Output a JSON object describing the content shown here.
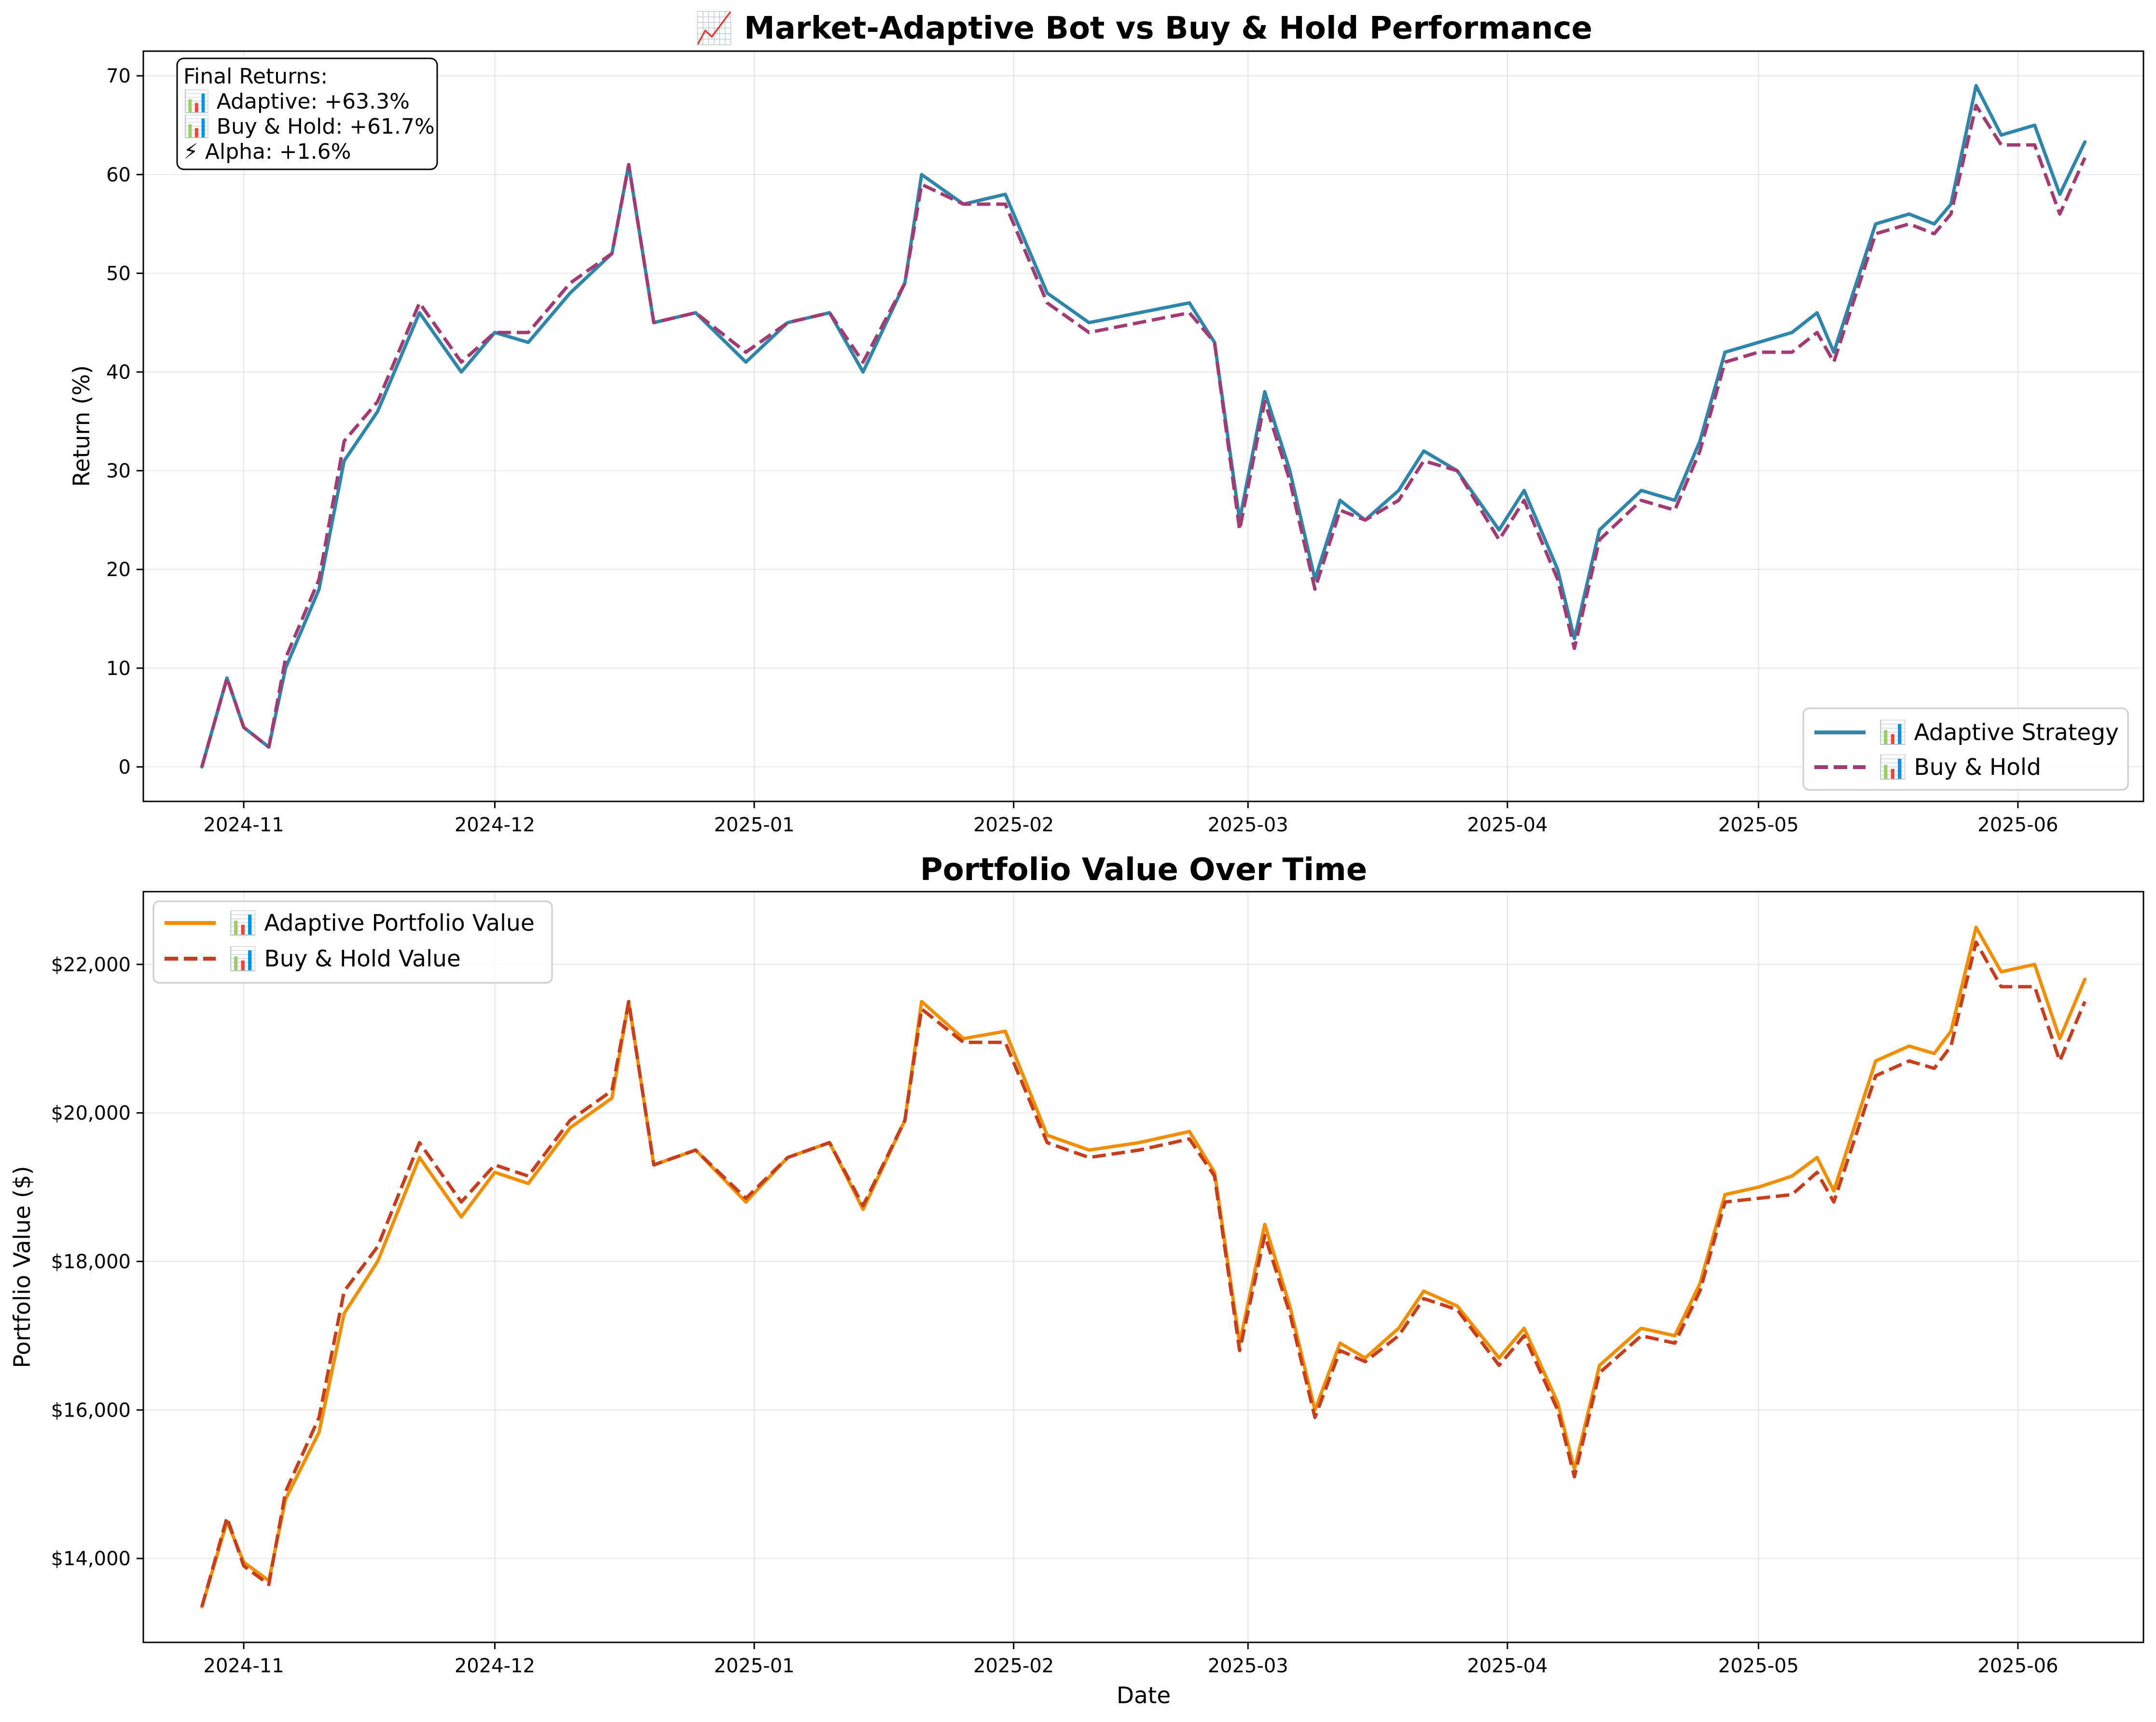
{
  "chart_data": [
    {
      "type": "line",
      "title": "📈 Market-Adaptive Bot vs Buy & Hold Performance",
      "xlabel": "",
      "ylabel": "Return (%)",
      "x_range": [
        "2024-10-20",
        "2025-06-16"
      ],
      "ylim": [
        -3.5,
        72.5
      ],
      "yticks": [
        0,
        10,
        20,
        30,
        40,
        50,
        60,
        70
      ],
      "xticks": [
        "2024-11",
        "2024-12",
        "2025-01",
        "2025-02",
        "2025-03",
        "2025-04",
        "2025-05",
        "2025-06"
      ],
      "grid": true,
      "legend_position": "lower right",
      "annotation": [
        "Final Returns:",
        "📊 Adaptive: +63.3%",
        "📊 Buy & Hold: +61.7%",
        "⚡ Alpha: +1.6%"
      ],
      "series": [
        {
          "name": "📊 Adaptive Strategy",
          "color": "#2E86AB",
          "linestyle": "solid",
          "x": [
            "2024-10-27",
            "2024-10-30",
            "2024-11-01",
            "2024-11-04",
            "2024-11-06",
            "2024-11-10",
            "2024-11-13",
            "2024-11-17",
            "2024-11-22",
            "2024-11-27",
            "2024-12-01",
            "2024-12-05",
            "2024-12-10",
            "2024-12-15",
            "2024-12-17",
            "2024-12-20",
            "2024-12-25",
            "2024-12-31",
            "2025-01-05",
            "2025-01-10",
            "2025-01-14",
            "2025-01-19",
            "2025-01-21",
            "2025-01-26",
            "2025-01-31",
            "2025-02-05",
            "2025-02-10",
            "2025-02-16",
            "2025-02-22",
            "2025-02-25",
            "2025-02-28",
            "2025-03-03",
            "2025-03-06",
            "2025-03-09",
            "2025-03-12",
            "2025-03-15",
            "2025-03-19",
            "2025-03-22",
            "2025-03-26",
            "2025-03-31",
            "2025-04-03",
            "2025-04-07",
            "2025-04-09",
            "2025-04-12",
            "2025-04-17",
            "2025-04-21",
            "2025-04-24",
            "2025-04-27",
            "2025-05-01",
            "2025-05-05",
            "2025-05-08",
            "2025-05-10",
            "2025-05-15",
            "2025-05-19",
            "2025-05-22",
            "2025-05-24",
            "2025-05-27",
            "2025-05-30",
            "2025-06-03",
            "2025-06-06",
            "2025-06-09"
          ],
          "values": [
            0,
            9,
            4,
            2,
            10,
            18,
            31,
            36,
            46,
            40,
            44,
            43,
            48,
            52,
            61,
            45,
            46,
            41,
            45,
            46,
            40,
            49,
            60,
            57,
            58,
            48,
            45,
            46,
            47,
            43,
            25,
            38,
            30,
            19,
            27,
            25,
            28,
            32,
            30,
            24,
            28,
            20,
            13,
            24,
            28,
            27,
            33,
            42,
            43,
            44,
            46,
            42,
            55,
            56,
            55,
            57,
            69,
            64,
            65,
            58,
            63.3
          ]
        },
        {
          "name": "📊 Buy & Hold",
          "color": "#A23B72",
          "linestyle": "dashed",
          "x": [
            "2024-10-27",
            "2024-10-30",
            "2024-11-01",
            "2024-11-04",
            "2024-11-06",
            "2024-11-10",
            "2024-11-13",
            "2024-11-17",
            "2024-11-22",
            "2024-11-27",
            "2024-12-01",
            "2024-12-05",
            "2024-12-10",
            "2024-12-15",
            "2024-12-17",
            "2024-12-20",
            "2024-12-25",
            "2024-12-31",
            "2025-01-05",
            "2025-01-10",
            "2025-01-14",
            "2025-01-19",
            "2025-01-21",
            "2025-01-26",
            "2025-01-31",
            "2025-02-05",
            "2025-02-10",
            "2025-02-16",
            "2025-02-22",
            "2025-02-25",
            "2025-02-28",
            "2025-03-03",
            "2025-03-06",
            "2025-03-09",
            "2025-03-12",
            "2025-03-15",
            "2025-03-19",
            "2025-03-22",
            "2025-03-26",
            "2025-03-31",
            "2025-04-03",
            "2025-04-07",
            "2025-04-09",
            "2025-04-12",
            "2025-04-17",
            "2025-04-21",
            "2025-04-24",
            "2025-04-27",
            "2025-05-01",
            "2025-05-05",
            "2025-05-08",
            "2025-05-10",
            "2025-05-15",
            "2025-05-19",
            "2025-05-22",
            "2025-05-24",
            "2025-05-27",
            "2025-05-30",
            "2025-06-03",
            "2025-06-06",
            "2025-06-09"
          ],
          "values": [
            0,
            9,
            4,
            2,
            11,
            19,
            33,
            37,
            47,
            41,
            44,
            44,
            49,
            52,
            61,
            45,
            46,
            42,
            45,
            46,
            41,
            49,
            59,
            57,
            57,
            47,
            44,
            45,
            46,
            43,
            24,
            37,
            29,
            18,
            26,
            25,
            27,
            31,
            30,
            23,
            27,
            19,
            12,
            23,
            27,
            26,
            32,
            41,
            42,
            42,
            44,
            41,
            54,
            55,
            54,
            56,
            67,
            63,
            63,
            56,
            61.7
          ]
        }
      ]
    },
    {
      "type": "line",
      "title": "Portfolio Value Over Time",
      "xlabel": "Date",
      "ylabel": "Portfolio Value ($)",
      "x_range": [
        "2024-10-20",
        "2025-06-16"
      ],
      "ylim": [
        12870,
        22980
      ],
      "yticks": [
        14000,
        16000,
        18000,
        20000,
        22000
      ],
      "ytick_labels": [
        "$14,000",
        "$16,000",
        "$18,000",
        "$20,000",
        "$22,000"
      ],
      "xticks": [
        "2024-11",
        "2024-12",
        "2025-01",
        "2025-02",
        "2025-03",
        "2025-04",
        "2025-05",
        "2025-06"
      ],
      "grid": true,
      "legend_position": "upper left",
      "series": [
        {
          "name": "📊 Adaptive Portfolio Value",
          "color": "#F18F01",
          "linestyle": "solid",
          "x": [
            "2024-10-27",
            "2024-10-30",
            "2024-11-01",
            "2024-11-04",
            "2024-11-06",
            "2024-11-10",
            "2024-11-13",
            "2024-11-17",
            "2024-11-22",
            "2024-11-27",
            "2024-12-01",
            "2024-12-05",
            "2024-12-10",
            "2024-12-15",
            "2024-12-17",
            "2024-12-20",
            "2024-12-25",
            "2024-12-31",
            "2025-01-05",
            "2025-01-10",
            "2025-01-14",
            "2025-01-19",
            "2025-01-21",
            "2025-01-26",
            "2025-01-31",
            "2025-02-05",
            "2025-02-10",
            "2025-02-16",
            "2025-02-22",
            "2025-02-25",
            "2025-02-28",
            "2025-03-03",
            "2025-03-06",
            "2025-03-09",
            "2025-03-12",
            "2025-03-15",
            "2025-03-19",
            "2025-03-22",
            "2025-03-26",
            "2025-03-31",
            "2025-04-03",
            "2025-04-07",
            "2025-04-09",
            "2025-04-12",
            "2025-04-17",
            "2025-04-21",
            "2025-04-24",
            "2025-04-27",
            "2025-05-01",
            "2025-05-05",
            "2025-05-08",
            "2025-05-10",
            "2025-05-15",
            "2025-05-19",
            "2025-05-22",
            "2025-05-24",
            "2025-05-27",
            "2025-05-30",
            "2025-06-03",
            "2025-06-06",
            "2025-06-09"
          ],
          "values": [
            13350,
            14500,
            13950,
            13700,
            14800,
            15700,
            17300,
            18000,
            19400,
            18600,
            19200,
            19050,
            19800,
            20200,
            21500,
            19300,
            19500,
            18800,
            19400,
            19600,
            18700,
            19900,
            21500,
            21000,
            21100,
            19700,
            19500,
            19600,
            19750,
            19200,
            16900,
            18500,
            17400,
            16000,
            16900,
            16700,
            17100,
            17600,
            17400,
            16700,
            17100,
            16100,
            15200,
            16600,
            17100,
            17000,
            17700,
            18900,
            19000,
            19150,
            19400,
            18950,
            20700,
            20900,
            20800,
            21100,
            22500,
            21900,
            22000,
            21000,
            21800
          ]
        },
        {
          "name": "📊 Buy & Hold Value",
          "color": "#C73E1D",
          "linestyle": "dashed",
          "x": [
            "2024-10-27",
            "2024-10-30",
            "2024-11-01",
            "2024-11-04",
            "2024-11-06",
            "2024-11-10",
            "2024-11-13",
            "2024-11-17",
            "2024-11-22",
            "2024-11-27",
            "2024-12-01",
            "2024-12-05",
            "2024-12-10",
            "2024-12-15",
            "2024-12-17",
            "2024-12-20",
            "2024-12-25",
            "2024-12-31",
            "2025-01-05",
            "2025-01-10",
            "2025-01-14",
            "2025-01-19",
            "2025-01-21",
            "2025-01-26",
            "2025-01-31",
            "2025-02-05",
            "2025-02-10",
            "2025-02-16",
            "2025-02-22",
            "2025-02-25",
            "2025-02-28",
            "2025-03-03",
            "2025-03-06",
            "2025-03-09",
            "2025-03-12",
            "2025-03-15",
            "2025-03-19",
            "2025-03-22",
            "2025-03-26",
            "2025-03-31",
            "2025-04-03",
            "2025-04-07",
            "2025-04-09",
            "2025-04-12",
            "2025-04-17",
            "2025-04-21",
            "2025-04-24",
            "2025-04-27",
            "2025-05-01",
            "2025-05-05",
            "2025-05-08",
            "2025-05-10",
            "2025-05-15",
            "2025-05-19",
            "2025-05-22",
            "2025-05-24",
            "2025-05-27",
            "2025-05-30",
            "2025-06-03",
            "2025-06-06",
            "2025-06-09"
          ],
          "values": [
            13350,
            14550,
            13900,
            13650,
            14900,
            15900,
            17600,
            18200,
            19600,
            18800,
            19300,
            19150,
            19900,
            20300,
            21500,
            19300,
            19500,
            18850,
            19400,
            19600,
            18750,
            19900,
            21400,
            20950,
            20950,
            19600,
            19400,
            19500,
            19650,
            19150,
            16800,
            18350,
            17300,
            15900,
            16800,
            16650,
            17000,
            17500,
            17350,
            16600,
            17000,
            16000,
            15100,
            16500,
            17000,
            16900,
            17600,
            18800,
            18850,
            18900,
            19200,
            18800,
            20500,
            20700,
            20600,
            20900,
            22300,
            21700,
            21700,
            20700,
            21500
          ]
        }
      ]
    }
  ]
}
